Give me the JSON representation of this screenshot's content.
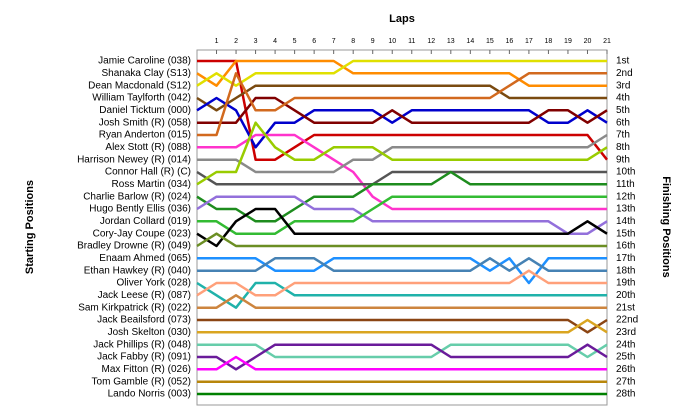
{
  "chart_data": {
    "type": "lap-chart",
    "x_label": "Laps",
    "y_label": "Starting Positions",
    "y2_label": "Finishing Positions",
    "x": [
      0,
      1,
      2,
      3,
      4,
      5,
      6,
      7,
      8,
      9,
      10,
      11,
      12,
      13,
      14,
      15,
      16,
      17,
      18,
      19,
      20,
      21
    ],
    "xticks": [
      1,
      2,
      3,
      4,
      5,
      6,
      7,
      8,
      9,
      10,
      11,
      12,
      13,
      14,
      15,
      16,
      17,
      18,
      19,
      20,
      21
    ],
    "ylim": [
      1,
      28
    ],
    "finish_labels": [
      "1st",
      "2nd",
      "3rd",
      "4th",
      "5th",
      "6th",
      "7th",
      "8th",
      "9th",
      "10th",
      "11th",
      "12th",
      "13th",
      "14th",
      "15th",
      "16th",
      "17th",
      "18th",
      "19th",
      "20th",
      "21st",
      "22nd",
      "23rd",
      "24th",
      "25th",
      "26th",
      "27th",
      "28th"
    ],
    "series": [
      {
        "name": "Jamie Caroline (038)",
        "color": "#cc0000",
        "values": [
          1,
          1,
          1,
          9,
          9,
          8,
          7,
          7,
          7,
          7,
          7,
          7,
          7,
          7,
          7,
          7,
          7,
          7,
          7,
          7,
          7,
          9
        ]
      },
      {
        "name": "Shanaka Clay (S13)",
        "color": "#ff8c00",
        "values": [
          2,
          3,
          1,
          1,
          1,
          1,
          1,
          1,
          2,
          2,
          2,
          2,
          2,
          2,
          2,
          2,
          2,
          3,
          3,
          3,
          3,
          3
        ]
      },
      {
        "name": "Dean Macdonald (S12)",
        "color": "#e0e000",
        "values": [
          3,
          2,
          3,
          2,
          2,
          2,
          2,
          2,
          1,
          1,
          1,
          1,
          1,
          1,
          1,
          1,
          1,
          1,
          1,
          1,
          1,
          1
        ]
      },
      {
        "name": "William Taylforth (042)",
        "color": "#7a4a10",
        "values": [
          4,
          5,
          4,
          3,
          3,
          3,
          3,
          3,
          3,
          3,
          3,
          3,
          3,
          3,
          3,
          3,
          4,
          4,
          4,
          4,
          4,
          4
        ]
      },
      {
        "name": "Daniel Ticktum (000)",
        "color": "#0000cc",
        "values": [
          5,
          4,
          5,
          8,
          6,
          6,
          5,
          5,
          5,
          5,
          6,
          5,
          5,
          5,
          5,
          5,
          5,
          5,
          6,
          6,
          5,
          6
        ]
      },
      {
        "name": "Josh Smith  (R) (058)",
        "color": "#800000",
        "values": [
          6,
          6,
          6,
          4,
          4,
          5,
          6,
          6,
          6,
          6,
          5,
          6,
          6,
          6,
          6,
          6,
          6,
          6,
          5,
          5,
          6,
          5
        ]
      },
      {
        "name": "Ryan Anderton (015)",
        "color": "#d2691e",
        "values": [
          7,
          7,
          2,
          5,
          5,
          4,
          4,
          4,
          4,
          4,
          4,
          4,
          4,
          4,
          4,
          4,
          3,
          2,
          2,
          2,
          2,
          2
        ]
      },
      {
        "name": "Alex Stott (R) (088)",
        "color": "#ff33cc",
        "values": [
          8,
          8,
          8,
          7,
          7,
          7,
          8,
          9,
          10,
          12,
          13,
          13,
          13,
          13,
          13,
          13,
          13,
          13,
          13,
          13,
          13,
          13
        ]
      },
      {
        "name": "Harrison Newey (R) (014)",
        "color": "#8a8a8a",
        "values": [
          9,
          9,
          9,
          10,
          10,
          10,
          10,
          10,
          9,
          9,
          8,
          8,
          8,
          8,
          8,
          8,
          8,
          8,
          8,
          8,
          8,
          7
        ]
      },
      {
        "name": "Connor Hall (R) (C)",
        "color": "#555555",
        "values": [
          10,
          11,
          11,
          11,
          11,
          11,
          11,
          11,
          11,
          11,
          10,
          10,
          10,
          10,
          10,
          10,
          10,
          10,
          10,
          10,
          10,
          10
        ]
      },
      {
        "name": "Ross Martin (034)",
        "color": "#99cc00",
        "values": [
          11,
          10,
          10,
          6,
          8,
          9,
          9,
          8,
          8,
          8,
          9,
          9,
          9,
          9,
          9,
          9,
          9,
          9,
          9,
          9,
          9,
          8
        ]
      },
      {
        "name": "Charlie Barlow  (R) (024)",
        "color": "#1e8c1e",
        "values": [
          12,
          13,
          13,
          14,
          14,
          13,
          12,
          12,
          12,
          11,
          11,
          11,
          11,
          10,
          11,
          11,
          11,
          11,
          11,
          11,
          11,
          11
        ]
      },
      {
        "name": "Hugo Bently Ellis (036)",
        "color": "#9370db",
        "values": [
          13,
          12,
          12,
          12,
          12,
          12,
          13,
          13,
          13,
          14,
          14,
          14,
          14,
          14,
          14,
          14,
          14,
          14,
          14,
          15,
          15,
          14
        ]
      },
      {
        "name": "Jordan Collard (019)",
        "color": "#33bb33",
        "values": [
          14,
          14,
          15,
          15,
          15,
          14,
          14,
          14,
          14,
          13,
          12,
          12,
          12,
          12,
          12,
          12,
          12,
          12,
          12,
          12,
          12,
          12
        ]
      },
      {
        "name": "Cory-Jay Coupe (023)",
        "color": "#000000",
        "values": [
          15,
          16,
          14,
          13,
          13,
          15,
          15,
          15,
          15,
          15,
          15,
          15,
          15,
          15,
          15,
          15,
          15,
          15,
          15,
          15,
          14,
          15
        ]
      },
      {
        "name": "Bradley Drowne (R) (049)",
        "color": "#6b8e23",
        "values": [
          16,
          15,
          16,
          16,
          16,
          16,
          16,
          16,
          16,
          16,
          16,
          16,
          16,
          16,
          16,
          16,
          16,
          16,
          16,
          16,
          16,
          16
        ]
      },
      {
        "name": "Enaam Ahmed (065)",
        "color": "#1e90ff",
        "values": [
          17,
          17,
          17,
          17,
          18,
          18,
          18,
          17,
          17,
          17,
          17,
          17,
          17,
          17,
          17,
          18,
          17,
          19,
          17,
          17,
          17,
          17
        ]
      },
      {
        "name": "Ethan Hawkey (R) (040)",
        "color": "#4682b4",
        "values": [
          18,
          18,
          18,
          18,
          17,
          17,
          17,
          18,
          18,
          18,
          18,
          18,
          18,
          18,
          18,
          17,
          18,
          17,
          18,
          18,
          18,
          18
        ]
      },
      {
        "name": "Oliver York (028)",
        "color": "#20b2aa",
        "values": [
          19,
          20,
          21,
          19,
          19,
          20,
          20,
          20,
          20,
          20,
          20,
          20,
          20,
          20,
          20,
          20,
          20,
          20,
          20,
          20,
          20,
          20
        ]
      },
      {
        "name": "Jack Leese (R) (087)",
        "color": "#ffa07a",
        "values": [
          20,
          19,
          19,
          20,
          20,
          19,
          19,
          19,
          19,
          19,
          19,
          19,
          19,
          19,
          19,
          19,
          19,
          18,
          19,
          19,
          19,
          19
        ]
      },
      {
        "name": "Sam Kirkpatrick (R) (022)",
        "color": "#cd853f",
        "values": [
          21,
          21,
          20,
          21,
          21,
          21,
          21,
          21,
          21,
          21,
          21,
          21,
          21,
          21,
          21,
          21,
          21,
          21,
          21,
          21,
          21,
          21
        ]
      },
      {
        "name": "Jack Beailsford (073)",
        "color": "#8b4513",
        "values": [
          22,
          22,
          22,
          22,
          22,
          22,
          22,
          22,
          22,
          22,
          22,
          22,
          22,
          22,
          22,
          22,
          22,
          22,
          22,
          22,
          23,
          22
        ]
      },
      {
        "name": "Josh Skelton (030)",
        "color": "#daa520",
        "values": [
          23,
          23,
          23,
          23,
          23,
          23,
          23,
          23,
          23,
          23,
          23,
          23,
          23,
          23,
          23,
          23,
          23,
          23,
          23,
          23,
          22,
          23
        ]
      },
      {
        "name": "Jack Phillips (R) (048)",
        "color": "#66cdaa",
        "values": [
          24,
          24,
          24,
          24,
          25,
          25,
          25,
          25,
          25,
          25,
          25,
          25,
          25,
          24,
          24,
          24,
          24,
          24,
          24,
          24,
          25,
          24
        ]
      },
      {
        "name": "Jack Fabby (R) (091)",
        "color": "#6a1b9a",
        "values": [
          25,
          25,
          26,
          25,
          24,
          24,
          24,
          24,
          24,
          24,
          24,
          24,
          24,
          25,
          25,
          25,
          25,
          25,
          25,
          25,
          24,
          25
        ]
      },
      {
        "name": "Max Fitton (R) (026)",
        "color": "#ff00ff",
        "values": [
          26,
          26,
          25,
          26,
          26,
          26,
          26,
          26,
          26,
          26,
          26,
          26,
          26,
          26,
          26,
          26,
          26,
          26,
          26,
          26,
          26,
          26
        ]
      },
      {
        "name": "Tom Gamble  (R) (052)",
        "color": "#b8860b",
        "values": [
          27,
          27,
          27,
          27,
          27,
          27,
          27,
          27,
          27,
          27,
          27,
          27,
          27,
          27,
          27,
          27,
          27,
          27,
          27,
          27,
          27,
          27
        ]
      },
      {
        "name": "Lando Norris (003)",
        "color": "#008000",
        "values": [
          28,
          28,
          28,
          28,
          28,
          28,
          28,
          28,
          28,
          28,
          28,
          28,
          28,
          28,
          28,
          28,
          28,
          28,
          28,
          28,
          28,
          28
        ]
      }
    ]
  }
}
